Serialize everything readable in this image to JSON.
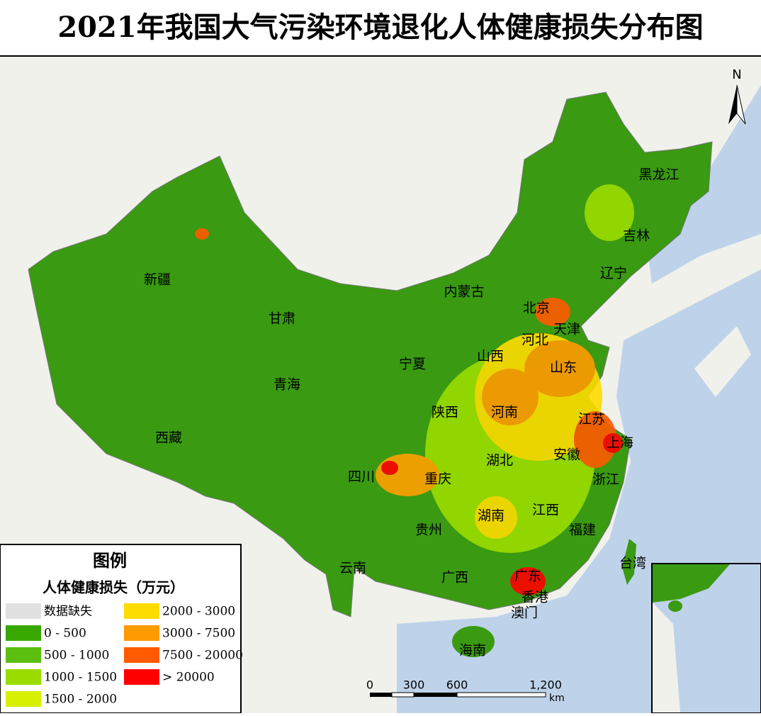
{
  "title": "2021年我国大气污染环境退化人体健康损失分布图",
  "north": "N",
  "regions": [
    "黑龙江",
    "吉林",
    "辽宁",
    "内蒙古",
    "北京",
    "天津",
    "河北",
    "山西",
    "山东",
    "宁夏",
    "甘肃",
    "新疆",
    "青海",
    "西藏",
    "陕西",
    "河南",
    "江苏",
    "上海",
    "安徽",
    "湖北",
    "四川",
    "重庆",
    "浙江",
    "江西",
    "湖南",
    "福建",
    "贵州",
    "云南",
    "广西",
    "广东",
    "台湾",
    "香港",
    "澳门",
    "海南"
  ],
  "legend": {
    "title": "图例",
    "subtitle": "人体健康损失（万元）",
    "items": [
      {
        "label": "数据缺失",
        "color": "#e1e1e1"
      },
      {
        "label": "0 - 500",
        "color": "#38a800"
      },
      {
        "label": "500 - 1000",
        "color": "#5cbf10"
      },
      {
        "label": "1000 - 1500",
        "color": "#9bdc00"
      },
      {
        "label": "1500 - 2000",
        "color": "#d7f000"
      },
      {
        "label": "2000 - 3000",
        "color": "#ffdc00"
      },
      {
        "label": "3000 - 7500",
        "color": "#ff9a00"
      },
      {
        "label": "7500 - 20000",
        "color": "#ff5a00"
      },
      {
        "label": "> 20000",
        "color": "#ff0000"
      }
    ]
  },
  "scale_bar": {
    "labels": [
      "0",
      "300",
      "600",
      "1,200"
    ],
    "unit": "km"
  }
}
